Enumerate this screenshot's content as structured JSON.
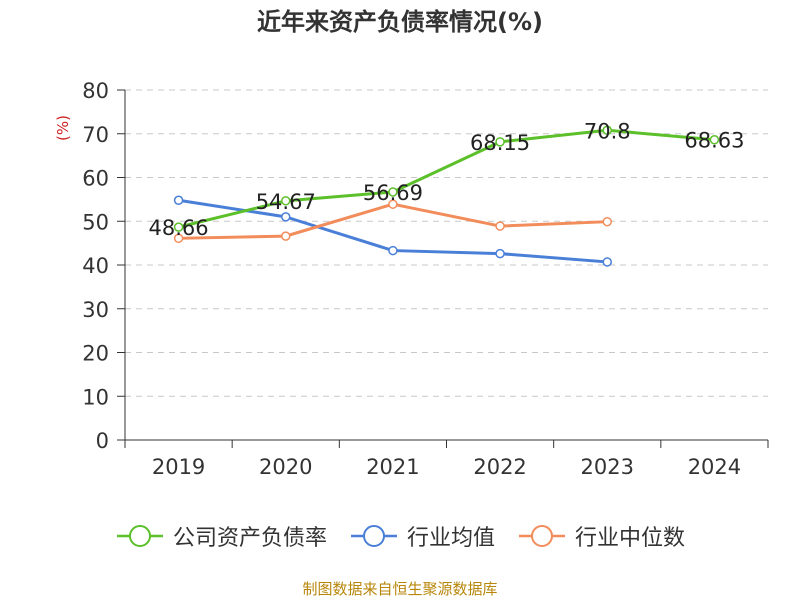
{
  "chart_data": {
    "type": "line",
    "title": "近年来资产负债率情况(%)",
    "ylabel": "(%)",
    "xlabel": "",
    "categories": [
      "2019",
      "2020",
      "2021",
      "2022",
      "2023",
      "2024"
    ],
    "ylim": [
      0,
      80
    ],
    "yticks": [
      0,
      10,
      20,
      30,
      40,
      50,
      60,
      70,
      80
    ],
    "grid": "horizontal dashed",
    "legend_position": "bottom",
    "series": [
      {
        "name": "公司资产负债率",
        "color": "#5cc02a",
        "values": [
          48.66,
          54.67,
          56.69,
          68.15,
          70.8,
          68.63
        ],
        "labels": [
          "48.66",
          "54.67",
          "56.69",
          "68.15",
          "70.8",
          "68.63"
        ]
      },
      {
        "name": "行业均值",
        "color": "#4a7fd8",
        "values": [
          54.8,
          51.0,
          43.3,
          42.6,
          40.7,
          null
        ]
      },
      {
        "name": "行业中位数",
        "color": "#f28c5a",
        "values": [
          46.1,
          46.6,
          53.9,
          48.9,
          49.9,
          null
        ]
      }
    ]
  },
  "footer": {
    "source": "制图数据来自恒生聚源数据库"
  }
}
